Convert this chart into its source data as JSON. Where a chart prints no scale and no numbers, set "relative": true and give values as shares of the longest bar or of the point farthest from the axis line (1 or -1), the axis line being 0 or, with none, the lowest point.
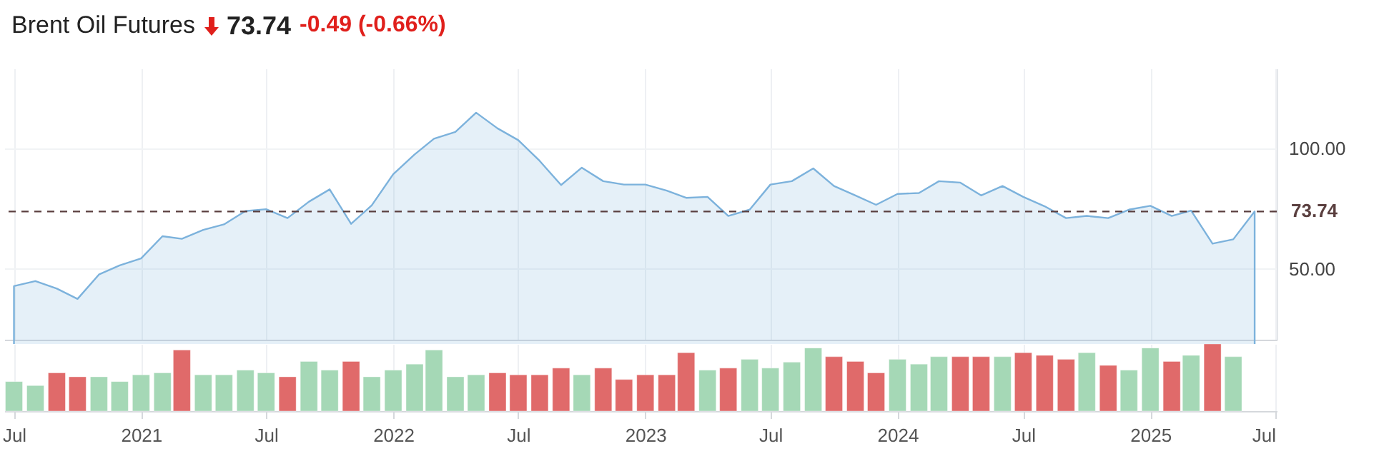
{
  "chart_data": [
    {
      "type": "area",
      "title": "Brent Oil Futures",
      "annotations": [
        "73.74",
        "-0.49 (-0.66%)"
      ],
      "x": [
        "2020-07",
        "2020-08",
        "2020-09",
        "2020-10",
        "2020-11",
        "2020-12",
        "2021-01",
        "2021-02",
        "2021-03",
        "2021-04",
        "2021-05",
        "2021-06",
        "2021-07",
        "2021-08",
        "2021-09",
        "2021-10",
        "2021-11",
        "2021-12",
        "2022-01",
        "2022-02",
        "2022-03",
        "2022-04",
        "2022-05",
        "2022-06",
        "2022-07",
        "2022-08",
        "2022-09",
        "2022-10",
        "2022-11",
        "2022-12",
        "2023-01",
        "2023-02",
        "2023-03",
        "2023-04",
        "2023-05",
        "2023-06",
        "2023-07",
        "2023-08",
        "2023-09",
        "2023-10",
        "2023-11",
        "2023-12",
        "2024-01",
        "2024-02",
        "2024-03",
        "2024-04",
        "2024-05",
        "2024-06",
        "2024-07",
        "2024-08",
        "2024-09",
        "2024-10",
        "2024-11",
        "2024-12",
        "2025-01",
        "2025-02",
        "2025-03",
        "2025-04",
        "2025-05",
        "2025-06"
      ],
      "series": [
        {
          "color": "#7cb2dc",
          "values": [
            42.8,
            44.9,
            41.8,
            37.5,
            47.6,
            51.4,
            54.3,
            63.5,
            62.4,
            66.1,
            68.4,
            73.9,
            74.7,
            71.0,
            77.8,
            82.9,
            68.6,
            76.3,
            89.2,
            97.4,
            103.9,
            106.7,
            114.7,
            108.2,
            103.3,
            94.7,
            84.7,
            91.9,
            86.3,
            84.9,
            84.9,
            82.4,
            79.4,
            79.8,
            71.9,
            74.5,
            84.9,
            86.3,
            91.6,
            84.3,
            80.4,
            76.5,
            81.0,
            81.4,
            86.3,
            85.7,
            80.4,
            84.3,
            79.8,
            75.9,
            71.0,
            71.9,
            71.0,
            74.5,
            76.1,
            71.9,
            74.1,
            60.4,
            62.2,
            73.74
          ]
        }
      ],
      "xlim": [
        "2020-06-17",
        "2025-07-03"
      ],
      "xticks": [
        {
          "value": "2020-07",
          "label": null
        },
        {
          "value": "2021-01",
          "label": null
        },
        {
          "value": "2021-07",
          "label": null
        },
        {
          "value": "2022-01",
          "label": null
        },
        {
          "value": "2022-07",
          "label": null
        },
        {
          "value": "2023-01",
          "label": null
        },
        {
          "value": "2023-07",
          "label": null
        },
        {
          "value": "2024-01",
          "label": null
        },
        {
          "value": "2024-07",
          "label": null
        },
        {
          "value": "2025-01",
          "label": null
        },
        {
          "value": "2025-07",
          "label": null
        }
      ],
      "ylim": [
        20.6,
        133
      ],
      "yticks": [
        {
          "value": 50,
          "label": "50.00"
        },
        {
          "value": 100,
          "label": "100.00"
        }
      ],
      "tick_labels": "y",
      "grid": true,
      "ref_lines": [
        {
          "axis": "y",
          "value": 73.74,
          "label": "73.74",
          "color": "#5a3f3f",
          "line_style": "dashed"
        }
      ]
    },
    {
      "type": "bar",
      "relative": true,
      "grid": "x",
      "x": [
        "2020-07",
        "2020-08",
        "2020-09",
        "2020-10",
        "2020-11",
        "2020-12",
        "2021-01",
        "2021-02",
        "2021-03",
        "2021-04",
        "2021-05",
        "2021-06",
        "2021-07",
        "2021-08",
        "2021-09",
        "2021-10",
        "2021-11",
        "2021-12",
        "2022-01",
        "2022-02",
        "2022-03",
        "2022-04",
        "2022-05",
        "2022-06",
        "2022-07",
        "2022-08",
        "2022-09",
        "2022-10",
        "2022-11",
        "2022-12",
        "2023-01",
        "2023-02",
        "2023-03",
        "2023-04",
        "2023-05",
        "2023-06",
        "2023-07",
        "2023-08",
        "2023-09",
        "2023-10",
        "2023-11",
        "2023-12",
        "2024-01",
        "2024-02",
        "2024-03",
        "2024-04",
        "2024-05",
        "2024-06",
        "2024-07",
        "2024-08",
        "2024-09",
        "2024-10",
        "2024-11",
        "2024-12",
        "2025-01",
        "2025-02",
        "2025-03",
        "2025-04",
        "2025-05"
      ],
      "values": [
        0.44,
        0.38,
        0.57,
        0.51,
        0.51,
        0.44,
        0.54,
        0.57,
        0.91,
        0.54,
        0.54,
        0.61,
        0.57,
        0.51,
        0.74,
        0.61,
        0.74,
        0.51,
        0.61,
        0.7,
        0.91,
        0.51,
        0.54,
        0.57,
        0.54,
        0.54,
        0.64,
        0.54,
        0.64,
        0.47,
        0.54,
        0.54,
        0.87,
        0.61,
        0.64,
        0.77,
        0.64,
        0.73,
        0.94,
        0.81,
        0.74,
        0.57,
        0.77,
        0.7,
        0.81,
        0.81,
        0.81,
        0.81,
        0.87,
        0.83,
        0.77,
        0.87,
        0.68,
        0.61,
        0.94,
        0.74,
        0.83,
        1,
        0.81
      ],
      "colors": [
        "#a5d8b6",
        "#a5d8b6",
        "#e06a6a",
        "#e06a6a",
        "#a5d8b6",
        "#a5d8b6",
        "#a5d8b6",
        "#a5d8b6",
        "#e06a6a",
        "#a5d8b6",
        "#a5d8b6",
        "#a5d8b6",
        "#a5d8b6",
        "#e06a6a",
        "#a5d8b6",
        "#a5d8b6",
        "#e06a6a",
        "#a5d8b6",
        "#a5d8b6",
        "#a5d8b6",
        "#a5d8b6",
        "#a5d8b6",
        "#a5d8b6",
        "#e06a6a",
        "#e06a6a",
        "#e06a6a",
        "#e06a6a",
        "#a5d8b6",
        "#e06a6a",
        "#e06a6a",
        "#e06a6a",
        "#e06a6a",
        "#e06a6a",
        "#a5d8b6",
        "#e06a6a",
        "#a5d8b6",
        "#a5d8b6",
        "#a5d8b6",
        "#a5d8b6",
        "#e06a6a",
        "#e06a6a",
        "#e06a6a",
        "#a5d8b6",
        "#a5d8b6",
        "#a5d8b6",
        "#e06a6a",
        "#e06a6a",
        "#a5d8b6",
        "#e06a6a",
        "#e06a6a",
        "#e06a6a",
        "#a5d8b6",
        "#e06a6a",
        "#a5d8b6",
        "#a5d8b6",
        "#e06a6a",
        "#a5d8b6",
        "#e06a6a",
        "#a5d8b6"
      ],
      "xlim": [
        "2020-06-17",
        "2025-07-03"
      ],
      "xticks": [
        {
          "value": "2020-07",
          "label": "Jul"
        },
        {
          "value": "2021-01",
          "label": "2021"
        },
        {
          "value": "2021-07",
          "label": "Jul"
        },
        {
          "value": "2022-01",
          "label": "2022"
        },
        {
          "value": "2022-07",
          "label": "Jul"
        },
        {
          "value": "2023-01",
          "label": "2023"
        },
        {
          "value": "2023-07",
          "label": "Jul"
        },
        {
          "value": "2024-01",
          "label": "2024"
        },
        {
          "value": "2024-07",
          "label": "Jul"
        },
        {
          "value": "2025-01",
          "label": "2025"
        },
        {
          "value": "2025-07",
          "label": "Jul"
        }
      ],
      "tick_labels": "x"
    }
  ]
}
